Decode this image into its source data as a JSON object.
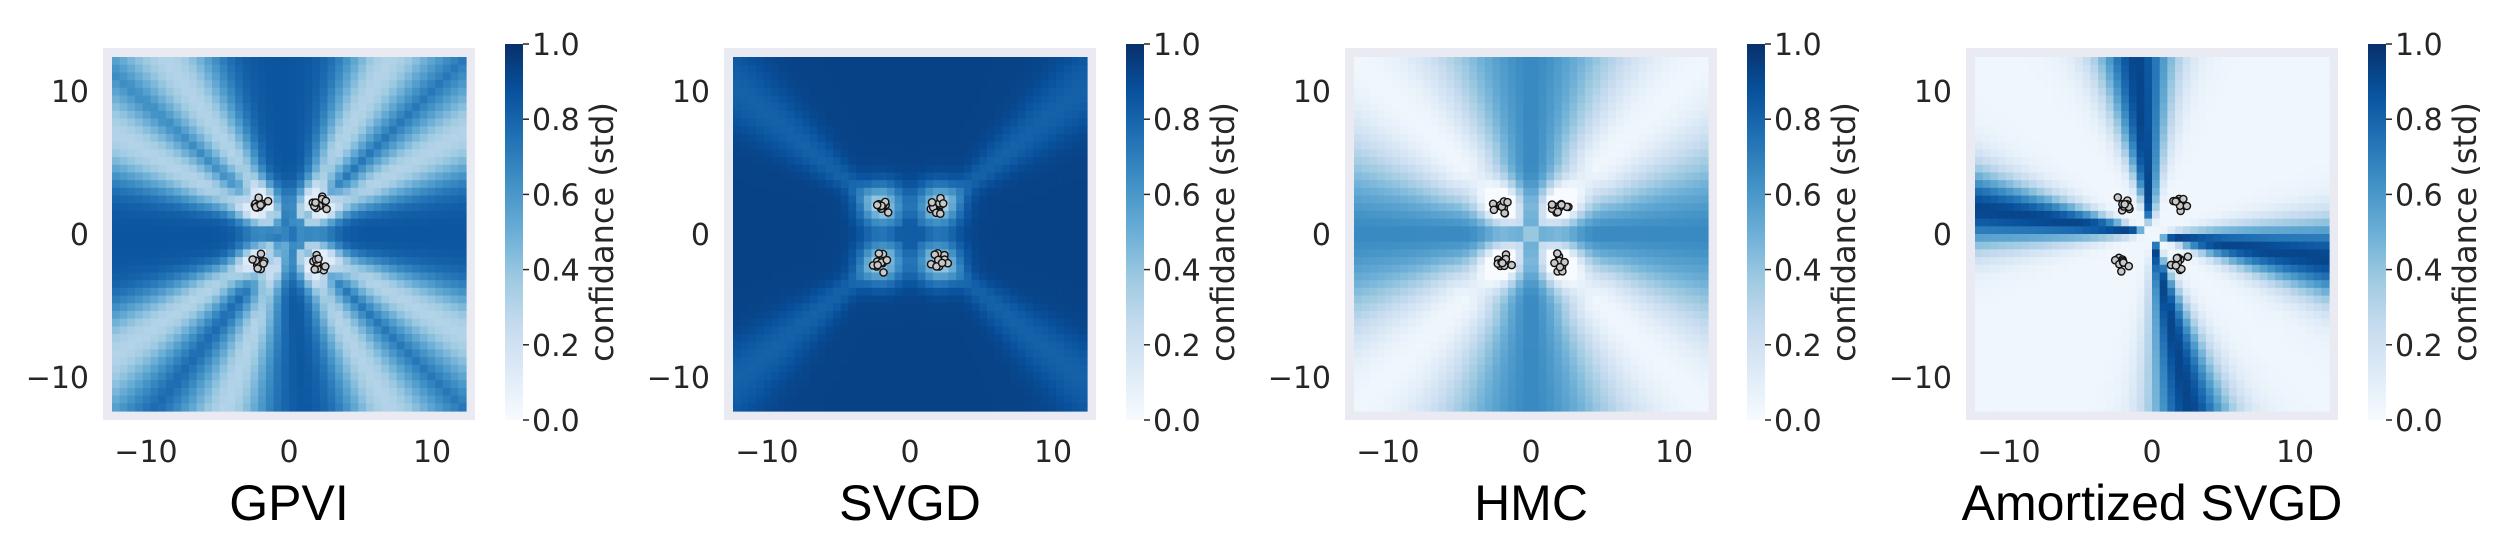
{
  "chart_data": [
    {
      "type": "heatmap",
      "title": "GPVI",
      "xlim": [
        -13,
        13
      ],
      "ylim": [
        -13,
        13
      ],
      "xticks": [
        -10,
        0,
        10
      ],
      "yticks": [
        -10,
        0,
        10
      ],
      "xtick_labels": [
        "−10",
        "0",
        "10"
      ],
      "ytick_labels": [
        "−10",
        "0",
        "10"
      ],
      "colorbar": {
        "label": "confidance (std)",
        "range": [
          0.0,
          1.0
        ],
        "ticks": [
          0.0,
          0.2,
          0.4,
          0.6,
          0.8,
          1.0
        ],
        "tick_labels": [
          "0.0",
          "0.2",
          "0.4",
          "0.6",
          "0.8",
          "1.0"
        ],
        "colormap": "Blues"
      },
      "clusters": [
        [
          -2,
          2
        ],
        [
          2,
          2
        ],
        [
          -2,
          -2
        ],
        [
          2,
          -2
        ]
      ],
      "field": {
        "base": 0.86,
        "light_rays_deg": [
          30,
          60,
          125,
          150,
          215,
          250,
          300,
          330
        ],
        "ray_width_deg": 9,
        "ray_depth": 0.55
      }
    },
    {
      "type": "heatmap",
      "title": "SVGD",
      "xlim": [
        -13,
        13
      ],
      "ylim": [
        -13,
        13
      ],
      "xticks": [
        -10,
        0,
        10
      ],
      "yticks": [
        -10,
        0,
        10
      ],
      "xtick_labels": [
        "−10",
        "0",
        "10"
      ],
      "ytick_labels": [
        "−10",
        "0",
        "10"
      ],
      "colorbar": {
        "label": "confidance (std)",
        "range": [
          0.0,
          1.0
        ],
        "ticks": [
          0.0,
          0.2,
          0.4,
          0.6,
          0.8,
          1.0
        ],
        "tick_labels": [
          "0.0",
          "0.2",
          "0.4",
          "0.6",
          "0.8",
          "1.0"
        ],
        "colormap": "Blues"
      },
      "clusters": [
        [
          -2,
          2
        ],
        [
          2,
          2
        ],
        [
          -2,
          -2
        ],
        [
          2,
          -2
        ]
      ],
      "field": {
        "base": 0.93,
        "light_rays_deg": [
          40,
          140,
          220,
          320
        ],
        "ray_width_deg": 6,
        "ray_depth": 0.12
      }
    },
    {
      "type": "heatmap",
      "title": "HMC",
      "xlim": [
        -13,
        13
      ],
      "ylim": [
        -13,
        13
      ],
      "xticks": [
        -10,
        0,
        10
      ],
      "yticks": [
        -10,
        0,
        10
      ],
      "xtick_labels": [
        "−10",
        "0",
        "10"
      ],
      "ytick_labels": [
        "−10",
        "0",
        "10"
      ],
      "colorbar": {
        "label": "confidance (std)",
        "range": [
          0.0,
          1.0
        ],
        "ticks": [
          0.0,
          0.2,
          0.4,
          0.6,
          0.8,
          1.0
        ],
        "tick_labels": [
          "0.0",
          "0.2",
          "0.4",
          "0.6",
          "0.8",
          "1.0"
        ],
        "colormap": "Blues"
      },
      "clusters": [
        [
          -2,
          2
        ],
        [
          2,
          2
        ],
        [
          -2,
          -2
        ],
        [
          2,
          -2
        ]
      ],
      "field": {
        "base": 0.72,
        "light_rays_deg": [
          45,
          135,
          225,
          315
        ],
        "ray_width_deg": 20,
        "ray_depth": 0.68
      }
    },
    {
      "type": "heatmap",
      "title": "Amortized SVGD",
      "xlim": [
        -13,
        13
      ],
      "ylim": [
        -13,
        13
      ],
      "xticks": [
        -10,
        0,
        10
      ],
      "yticks": [
        -10,
        0,
        10
      ],
      "xtick_labels": [
        "−10",
        "0",
        "10"
      ],
      "ytick_labels": [
        "−10",
        "0",
        "10"
      ],
      "colorbar": {
        "label": "confidance (std)",
        "range": [
          0.0,
          1.0
        ],
        "ticks": [
          0.0,
          0.2,
          0.4,
          0.6,
          0.8,
          1.0
        ],
        "tick_labels": [
          "0.0",
          "0.2",
          "0.4",
          "0.6",
          "0.8",
          "1.0"
        ],
        "colormap": "Blues"
      },
      "clusters": [
        [
          -2,
          2
        ],
        [
          2,
          2
        ],
        [
          -2,
          -2
        ],
        [
          2,
          -2
        ]
      ],
      "field": {
        "base": 0.04,
        "dark_rays_deg": [
          95,
          172,
          282,
          352
        ],
        "ray_width_deg": 9,
        "ray_peak": 0.92
      }
    }
  ]
}
